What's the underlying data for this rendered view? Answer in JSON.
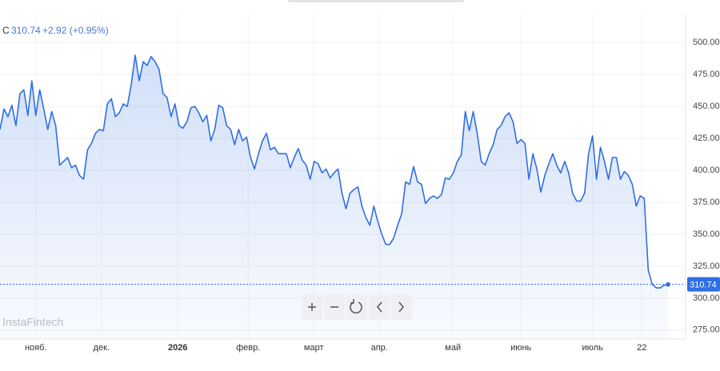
{
  "chart_data": {
    "type": "line",
    "symbol": "C",
    "change": "+2.92 (+0.95%)",
    "watermark": "InstaFintech",
    "color": "#2f6fe4",
    "grid": true,
    "values": [
      432,
      448,
      442,
      451,
      435,
      460,
      463,
      443,
      470,
      443,
      463,
      448,
      432,
      446,
      435,
      404,
      407,
      410,
      402,
      404,
      396,
      393,
      416,
      421,
      429,
      432,
      431,
      452,
      456,
      442,
      445,
      452,
      450,
      467,
      490,
      470,
      485,
      482,
      489,
      485,
      479,
      460,
      457,
      442,
      452,
      435,
      433,
      438,
      449,
      450,
      445,
      438,
      443,
      423,
      432,
      451,
      449,
      435,
      432,
      420,
      432,
      423,
      426,
      410,
      401,
      413,
      423,
      429,
      416,
      418,
      413,
      413,
      413,
      402,
      410,
      417,
      408,
      404,
      393,
      407,
      405,
      398,
      401,
      394,
      398,
      401,
      382,
      370,
      382,
      385,
      387,
      372,
      363,
      357,
      372,
      360,
      350,
      342,
      342,
      347,
      357,
      366,
      391,
      389,
      403,
      391,
      389,
      374,
      378,
      380,
      378,
      381,
      394,
      393,
      398,
      407,
      412,
      446,
      431,
      446,
      429,
      407,
      404,
      413,
      420,
      432,
      435,
      442,
      445,
      438,
      421,
      424,
      421,
      393,
      413,
      401,
      383,
      396,
      405,
      413,
      404,
      398,
      407,
      398,
      382,
      376,
      376,
      382,
      413,
      427,
      393,
      418,
      407,
      393,
      410,
      410,
      393,
      399,
      396,
      389,
      372,
      380,
      378,
      322,
      311,
      308,
      308,
      310,
      310.74
    ],
    "xlim": [
      0,
      172
    ],
    "xticks": [
      {
        "value": 9,
        "label": "нояб."
      },
      {
        "value": 25.5,
        "label": "дек."
      },
      {
        "value": 44.7,
        "label": "2026"
      },
      {
        "value": 62.4,
        "label": "февр."
      },
      {
        "value": 78.9,
        "label": "март"
      },
      {
        "value": 95.4,
        "label": "апр."
      },
      {
        "value": 113.9,
        "label": "май"
      },
      {
        "value": 131,
        "label": "июнь"
      },
      {
        "value": 149,
        "label": "июль"
      },
      {
        "value": 161.4,
        "label": "22"
      }
    ],
    "ylim": [
      268,
      522
    ],
    "yticks": [
      {
        "value": 275,
        "label": "275.00"
      },
      {
        "value": 300,
        "label": "300.00"
      },
      {
        "value": 325,
        "label": "325.00"
      },
      {
        "value": 350,
        "label": "350.00"
      },
      {
        "value": 375,
        "label": "375.00"
      },
      {
        "value": 400,
        "label": "400.00"
      },
      {
        "value": 425,
        "label": "425.00"
      },
      {
        "value": 450,
        "label": "450.00"
      },
      {
        "value": 475,
        "label": "475.00"
      },
      {
        "value": 500,
        "label": "500.00"
      }
    ]
  }
}
